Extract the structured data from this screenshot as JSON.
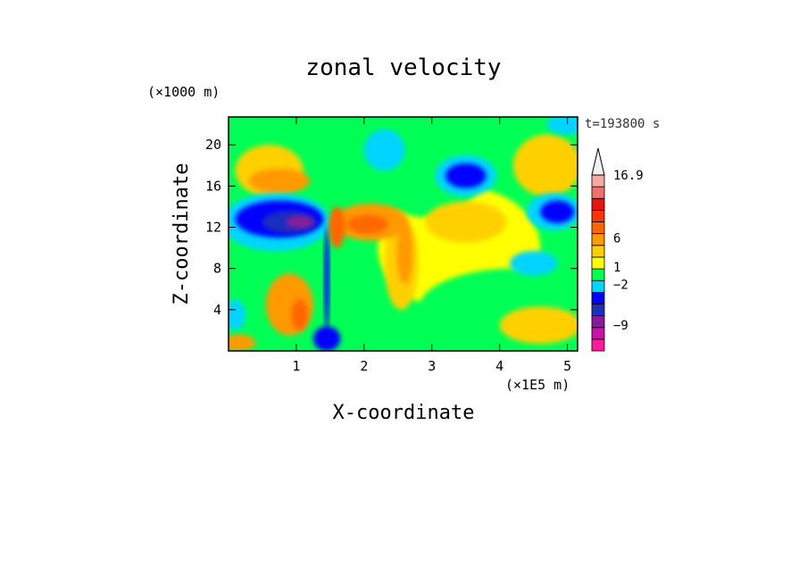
{
  "chart_data": {
    "type": "heatmap",
    "title": "zonal velocity",
    "xlabel": "X-coordinate",
    "ylabel": "Z-coordinate",
    "x_unit": "(×1E5 m)",
    "y_unit": "(×1000 m)",
    "time_label": "t=193800 s",
    "xlim": [
      0,
      5.15
    ],
    "ylim": [
      0,
      22.7
    ],
    "xticks": [
      "1",
      "2",
      "3",
      "4",
      "5"
    ],
    "xtick_values": [
      1,
      2,
      3,
      4,
      5
    ],
    "yticks": [
      "4",
      "8",
      "12",
      "16",
      "20"
    ],
    "ytick_values": [
      4,
      8,
      12,
      16,
      20
    ],
    "colorbar": {
      "labels": [
        {
          "text": "16.9",
          "level": 16.9
        },
        {
          "text": "6",
          "level": 6
        },
        {
          "text": "1",
          "level": 1
        },
        {
          "text": "−2",
          "level": -2
        },
        {
          "text": "−9",
          "level": -9
        }
      ],
      "colors": [
        "#ff1a9e",
        "#cc11aa",
        "#8b1a9a",
        "#1f2fbf",
        "#0000ff",
        "#00d4ff",
        "#00ff55",
        "#ffff00",
        "#ffd000",
        "#ff9900",
        "#ff6600",
        "#ff3300",
        "#ee1111",
        "#f07070",
        "#f4aaa0",
        "#ffffff"
      ],
      "max_arrow_color": "#f2f2f2"
    },
    "regions": [
      {
        "color": "#ffff00",
        "x": 3.4,
        "y": 10,
        "rx": 1.2,
        "ry": 6,
        "value": 0.5
      },
      {
        "color": "#00ff55",
        "x": 4.2,
        "y": 4,
        "rx": 1.4,
        "ry": 4,
        "value": -1
      },
      {
        "color": "#00ff55",
        "x": 2.9,
        "y": 18,
        "rx": 0.9,
        "ry": 5,
        "value": -1
      },
      {
        "color": "#00ff55",
        "x": 0.9,
        "y": 6,
        "rx": 0.7,
        "ry": 4,
        "value": -1
      },
      {
        "color": "#00ff55",
        "x": 0.35,
        "y": 20,
        "rx": 0.4,
        "ry": 3,
        "value": -1
      },
      {
        "color": "#ffd000",
        "x": 4.7,
        "y": 18,
        "rx": 0.5,
        "ry": 3,
        "value": 2
      },
      {
        "color": "#ffd000",
        "x": 3.5,
        "y": 12.5,
        "rx": 0.6,
        "ry": 2,
        "value": 2
      },
      {
        "color": "#ffd000",
        "x": 4.6,
        "y": 2.5,
        "rx": 0.6,
        "ry": 1.8,
        "value": 2
      },
      {
        "color": "#ffd000",
        "x": 2.55,
        "y": 8.5,
        "rx": 0.25,
        "ry": 4.5,
        "value": 2
      },
      {
        "color": "#ff9900",
        "x": 2.6,
        "y": 9.5,
        "rx": 0.12,
        "ry": 3,
        "value": 4
      },
      {
        "color": "#ffd000",
        "x": 0.6,
        "y": 17.5,
        "rx": 0.5,
        "ry": 2.5,
        "value": 2
      },
      {
        "color": "#ff9900",
        "x": 0.75,
        "y": 16.5,
        "rx": 0.45,
        "ry": 1.2,
        "value": 4
      },
      {
        "color": "#ff9900",
        "x": 2.1,
        "y": 12.5,
        "rx": 0.55,
        "ry": 1.8,
        "value": 5
      },
      {
        "color": "#ff6600",
        "x": 2.05,
        "y": 12.3,
        "rx": 0.3,
        "ry": 0.9,
        "value": 6
      },
      {
        "color": "#ff9900",
        "x": 0.9,
        "y": 4.5,
        "rx": 0.35,
        "ry": 3,
        "value": 4
      },
      {
        "color": "#ff6600",
        "x": 1.05,
        "y": 3.5,
        "rx": 0.12,
        "ry": 1.5,
        "value": 6
      },
      {
        "color": "#ff9900",
        "x": 0.15,
        "y": 0.8,
        "rx": 0.25,
        "ry": 0.8,
        "value": 4
      },
      {
        "color": "#00d4ff",
        "x": 0.7,
        "y": 12.5,
        "rx": 0.8,
        "ry": 2.8,
        "value": -3
      },
      {
        "color": "#0000ff",
        "x": 0.75,
        "y": 12.8,
        "rx": 0.65,
        "ry": 1.8,
        "value": -5
      },
      {
        "color": "#1f2fbf",
        "x": 0.9,
        "y": 12.5,
        "rx": 0.4,
        "ry": 1.1,
        "value": -7
      },
      {
        "color": "#8b1a9a",
        "x": 1.05,
        "y": 12.5,
        "rx": 0.2,
        "ry": 0.6,
        "value": -9
      },
      {
        "color": "#00d4ff",
        "x": 3.5,
        "y": 17,
        "rx": 0.45,
        "ry": 2,
        "value": -3
      },
      {
        "color": "#0000ff",
        "x": 3.5,
        "y": 17,
        "rx": 0.3,
        "ry": 1.2,
        "value": -5
      },
      {
        "color": "#00d4ff",
        "x": 4.8,
        "y": 13.5,
        "rx": 0.4,
        "ry": 1.8,
        "value": -3
      },
      {
        "color": "#0000ff",
        "x": 4.85,
        "y": 13.5,
        "rx": 0.25,
        "ry": 1.1,
        "value": -5
      },
      {
        "color": "#00d4ff",
        "x": 2.3,
        "y": 19.5,
        "rx": 0.3,
        "ry": 2,
        "value": -3
      },
      {
        "color": "#00d4ff",
        "x": 4.5,
        "y": 8.5,
        "rx": 0.35,
        "ry": 1.2,
        "value": -3
      },
      {
        "color": "#00d4ff",
        "x": 0.1,
        "y": 3.5,
        "rx": 0.15,
        "ry": 1.5,
        "value": -3
      },
      {
        "color": "#00d4ff",
        "x": 5.0,
        "y": 22,
        "rx": 0.3,
        "ry": 1,
        "value": -3
      },
      {
        "color": "#0000ff",
        "x": 1.45,
        "y": 1.2,
        "rx": 0.2,
        "ry": 1.2,
        "value": -5
      },
      {
        "color": "#0000ff",
        "x": 1.45,
        "y": 7,
        "rx": 0.04,
        "ry": 5,
        "value": -5
      },
      {
        "color": "#ff6600",
        "x": 1.6,
        "y": 12,
        "rx": 0.12,
        "ry": 2,
        "value": 6
      }
    ]
  }
}
